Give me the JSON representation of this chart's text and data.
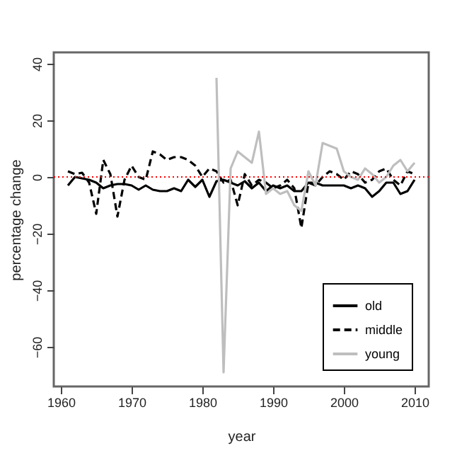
{
  "chart_data": {
    "type": "line",
    "xlabel": "year",
    "ylabel": "percentage change",
    "x": [
      1961,
      1962,
      1963,
      1964,
      1965,
      1966,
      1967,
      1968,
      1969,
      1970,
      1971,
      1972,
      1973,
      1974,
      1975,
      1976,
      1977,
      1978,
      1979,
      1980,
      1981,
      1982,
      1983,
      1984,
      1985,
      1986,
      1987,
      1988,
      1989,
      1990,
      1991,
      1992,
      1993,
      1994,
      1995,
      1996,
      1997,
      1998,
      1999,
      2000,
      2001,
      2002,
      2003,
      2004,
      2005,
      2006,
      2007,
      2008,
      2009,
      2010
    ],
    "series": [
      {
        "name": "old",
        "color": "#000000",
        "line_style": "solid",
        "values": [
          -3,
          0,
          -0.5,
          -1,
          -2,
          -4,
          -3,
          -2.5,
          -2.5,
          -3,
          -4.5,
          -3,
          -4.5,
          -5,
          -5,
          -4,
          -5,
          -1,
          -3.5,
          -1,
          -7,
          -1.5,
          -1,
          -2,
          -3,
          -1.5,
          -4,
          -2,
          -5,
          -3,
          -4,
          -3,
          -5,
          -5,
          -2,
          -2,
          -3,
          -3,
          -3,
          -3,
          -4,
          -3,
          -4,
          -7,
          -5,
          -2,
          -2,
          -6,
          -5,
          -1
        ]
      },
      {
        "name": "middle",
        "color": "#000000",
        "line_style": "dashed",
        "values": [
          2,
          1,
          1.5,
          -2,
          -13,
          6,
          1,
          -14,
          -1,
          4,
          0,
          -1,
          9,
          8,
          6,
          7,
          7,
          6,
          4,
          0,
          3,
          2,
          -2,
          -1,
          -10,
          1,
          -3,
          -1,
          -2,
          -4,
          -3,
          -1,
          -4,
          -18,
          -2,
          -3,
          0,
          2,
          1,
          -1,
          2,
          1,
          -2,
          -1,
          2,
          3,
          -1,
          -3,
          2,
          1
        ]
      },
      {
        "name": "young",
        "color": "#bebebe",
        "line_style": "solid",
        "values": [
          null,
          null,
          null,
          null,
          null,
          null,
          null,
          null,
          null,
          null,
          null,
          null,
          null,
          null,
          null,
          null,
          null,
          null,
          null,
          null,
          null,
          35,
          -69,
          3,
          9,
          7,
          5,
          16,
          -6,
          -4,
          -6,
          -5,
          -10,
          -12,
          2,
          -3,
          12,
          11,
          10,
          2,
          0,
          -1,
          3,
          1,
          -2,
          0,
          4,
          6,
          2,
          5
        ]
      }
    ],
    "xlim": [
      1959,
      2012
    ],
    "xticks": [
      1960,
      1970,
      1980,
      1990,
      2000,
      2010
    ],
    "ylim": [
      -74,
      44
    ],
    "yticks": [
      -60,
      -40,
      -20,
      0,
      20,
      40
    ],
    "ref_lines": [
      {
        "axis": "y",
        "value": 0,
        "color": "#ff0000",
        "line_style": "dotted"
      }
    ],
    "legend": "bottom right",
    "grid": false
  }
}
